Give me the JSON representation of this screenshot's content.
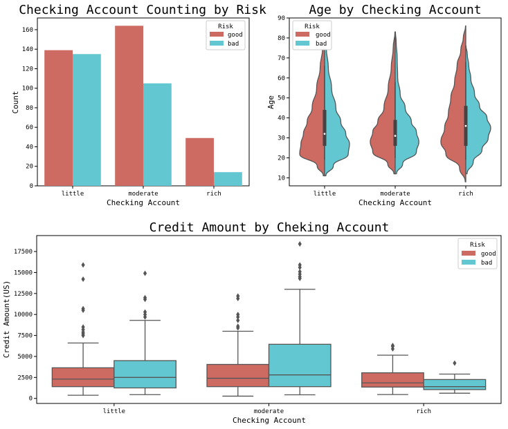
{
  "colors": {
    "good": "#cd6a62",
    "bad": "#62c7d0",
    "edge": "#555555"
  },
  "chart_data": [
    {
      "type": "bar",
      "title": "Checking Account Counting by Risk",
      "xlabel": "Checking Account",
      "ylabel": "Count",
      "categories": [
        "little",
        "moderate",
        "rich"
      ],
      "ylim": [
        0,
        172
      ],
      "yticks": [
        0,
        20,
        40,
        60,
        80,
        100,
        120,
        140,
        160
      ],
      "legend": {
        "title": "Risk",
        "placement": "top-right"
      },
      "series": [
        {
          "name": "good",
          "values": [
            139,
            164,
            49
          ]
        },
        {
          "name": "bad",
          "values": [
            135,
            105,
            14
          ]
        }
      ]
    },
    {
      "type": "violin",
      "title": "Age by Checking Account",
      "xlabel": "Checking Account",
      "ylabel": "Age",
      "categories": [
        "little",
        "moderate",
        "rich"
      ],
      "ylim": [
        6,
        90
      ],
      "yticks": [
        10,
        20,
        30,
        40,
        50,
        60,
        70,
        80,
        90
      ],
      "legend": {
        "title": "Risk",
        "placement": "top-left"
      },
      "split": true,
      "violins": [
        {
          "category": "little",
          "range": [
            11,
            83
          ],
          "good_profile": [
            [
              11,
              0.05
            ],
            [
              16,
              0.3
            ],
            [
              22,
              1.0
            ],
            [
              27,
              0.95
            ],
            [
              32,
              0.85
            ],
            [
              38,
              0.7
            ],
            [
              45,
              0.5
            ],
            [
              55,
              0.32
            ],
            [
              65,
              0.18
            ],
            [
              75,
              0.08
            ],
            [
              83,
              0.01
            ]
          ],
          "bad_profile": [
            [
              11,
              0.05
            ],
            [
              16,
              0.35
            ],
            [
              22,
              0.95
            ],
            [
              27,
              1.0
            ],
            [
              32,
              0.85
            ],
            [
              38,
              0.65
            ],
            [
              45,
              0.45
            ],
            [
              55,
              0.28
            ],
            [
              65,
              0.15
            ],
            [
              75,
              0.07
            ],
            [
              83,
              0.01
            ]
          ],
          "quartiles": [
            26,
            32,
            44
          ],
          "whiskers": [
            19,
            66
          ]
        },
        {
          "category": "moderate",
          "range": [
            12,
            83
          ],
          "good_profile": [
            [
              12,
              0.05
            ],
            [
              17,
              0.3
            ],
            [
              23,
              0.9
            ],
            [
              28,
              1.0
            ],
            [
              33,
              0.9
            ],
            [
              38,
              0.7
            ],
            [
              45,
              0.45
            ],
            [
              55,
              0.28
            ],
            [
              65,
              0.16
            ],
            [
              75,
              0.08
            ],
            [
              83,
              0.01
            ]
          ],
          "bad_profile": [
            [
              12,
              0.05
            ],
            [
              17,
              0.3
            ],
            [
              23,
              0.85
            ],
            [
              28,
              0.95
            ],
            [
              33,
              0.85
            ],
            [
              38,
              0.65
            ],
            [
              45,
              0.4
            ],
            [
              52,
              0.2
            ],
            [
              60,
              0.1
            ],
            [
              70,
              0.08
            ],
            [
              78,
              0.04
            ],
            [
              83,
              0.01
            ]
          ],
          "quartiles": [
            26,
            31,
            39
          ],
          "whiskers": [
            20,
            58
          ]
        },
        {
          "category": "rich",
          "range": [
            8,
            86
          ],
          "good_profile": [
            [
              8,
              0.02
            ],
            [
              15,
              0.25
            ],
            [
              22,
              0.8
            ],
            [
              28,
              1.0
            ],
            [
              35,
              0.85
            ],
            [
              42,
              0.7
            ],
            [
              50,
              0.6
            ],
            [
              58,
              0.45
            ],
            [
              66,
              0.35
            ],
            [
              74,
              0.2
            ],
            [
              80,
              0.1
            ],
            [
              86,
              0.01
            ]
          ],
          "bad_profile": [
            [
              12,
              0.05
            ],
            [
              18,
              0.3
            ],
            [
              24,
              0.65
            ],
            [
              30,
              0.9
            ],
            [
              35,
              1.0
            ],
            [
              40,
              0.85
            ],
            [
              46,
              0.55
            ],
            [
              52,
              0.35
            ],
            [
              60,
              0.2
            ],
            [
              66,
              0.12
            ],
            [
              72,
              0.06
            ],
            [
              76,
              0.01
            ]
          ],
          "quartiles": [
            26,
            36,
            46
          ],
          "whiskers": [
            19,
            68
          ]
        }
      ]
    },
    {
      "type": "box",
      "title": "Credit Amount by Cheking Account",
      "xlabel": "Checking Account",
      "ylabel": "Credit Amount(US)",
      "categories": [
        "little",
        "moderate",
        "rich"
      ],
      "ylim": [
        -600,
        19400
      ],
      "yticks": [
        0,
        2500,
        5000,
        7500,
        10000,
        12500,
        15000,
        17500
      ],
      "legend": {
        "title": "Risk",
        "placement": "top-right"
      },
      "boxes": [
        {
          "category": "little",
          "series": "good",
          "whislo": 380,
          "q1": 1400,
          "med": 2300,
          "q3": 3650,
          "whishi": 6600,
          "fliers": [
            7500,
            7700,
            7900,
            8200,
            8500,
            10500,
            10700,
            14200,
            15900
          ]
        },
        {
          "category": "little",
          "series": "bad",
          "whislo": 450,
          "q1": 1250,
          "med": 2500,
          "q3": 4500,
          "whishi": 9300,
          "fliers": [
            9700,
            10000,
            10300,
            11800,
            12000,
            14900
          ]
        },
        {
          "category": "moderate",
          "series": "good",
          "whislo": 270,
          "q1": 1400,
          "med": 2400,
          "q3": 4050,
          "whishi": 8000,
          "fliers": [
            8400,
            8600,
            9300,
            9700,
            10000,
            11900,
            12200
          ]
        },
        {
          "category": "moderate",
          "series": "bad",
          "whislo": 430,
          "q1": 1400,
          "med": 2800,
          "q3": 6450,
          "whishi": 13000,
          "fliers": [
            14300,
            14500,
            14800,
            15100,
            15600,
            15900,
            18400
          ]
        },
        {
          "category": "rich",
          "series": "good",
          "whislo": 460,
          "q1": 1350,
          "med": 1850,
          "q3": 3050,
          "whishi": 5150,
          "fliers": [
            5900,
            6200,
            6300
          ]
        },
        {
          "category": "rich",
          "series": "bad",
          "whislo": 620,
          "q1": 1050,
          "med": 1400,
          "q3": 2250,
          "whishi": 2900,
          "fliers": [
            4200
          ]
        }
      ]
    }
  ]
}
